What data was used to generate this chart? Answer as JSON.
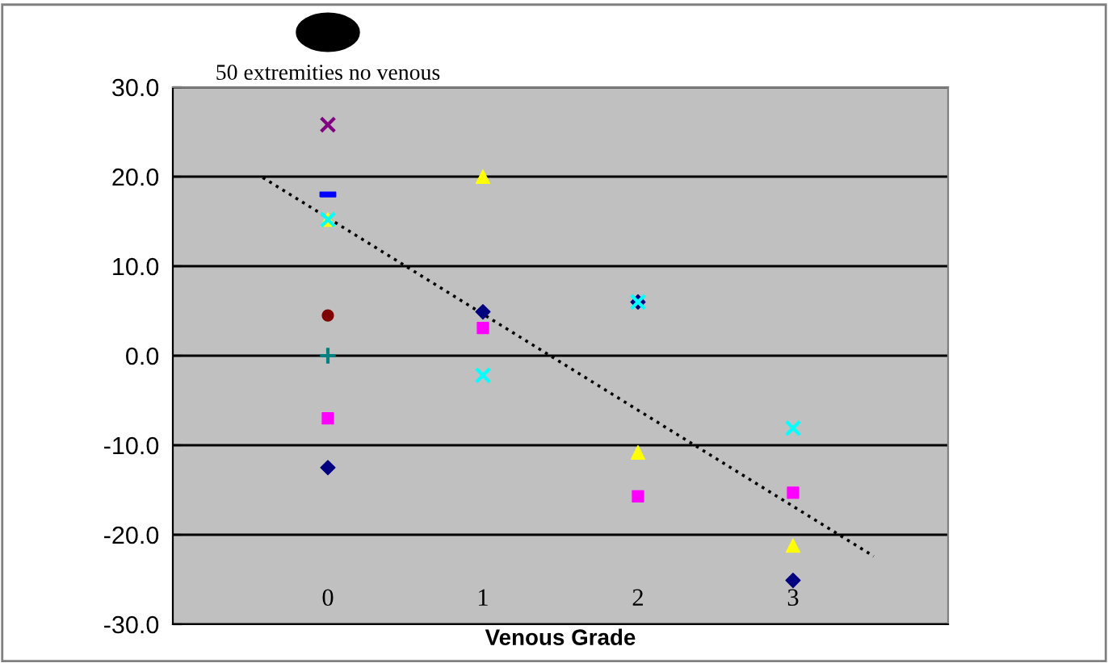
{
  "chart_data": {
    "type": "scatter",
    "xlabel": "Venous Grade",
    "annotations": [
      "50 extremities no venous"
    ],
    "xlim": [
      -1,
      4
    ],
    "xticks": [
      0,
      1,
      2,
      3
    ],
    "ylim": [
      -30,
      30
    ],
    "yticks": [
      {
        "value": -30,
        "label": "-30.0"
      },
      {
        "value": -20,
        "label": "-20.0"
      },
      {
        "value": -10,
        "label": "-10.0"
      },
      {
        "value": 0,
        "label": "0.0"
      },
      {
        "value": 10,
        "label": "10.0"
      },
      {
        "value": 20,
        "label": "20.0"
      },
      {
        "value": 30,
        "label": "30.0"
      }
    ],
    "grid": "y",
    "legend": false,
    "series": [
      {
        "type": "line",
        "x": [
          -0.42,
          3.52
        ],
        "values": [
          19.9,
          -22.4
        ],
        "color": "#000000",
        "marker": "none",
        "line_style": "dotted"
      },
      {
        "x": [
          0,
          1,
          2,
          3
        ],
        "values": [
          -12.5,
          4.9,
          6.0,
          -25.1
        ],
        "color": "#000080",
        "marker": "diamond"
      },
      {
        "x": [
          0,
          1,
          2,
          3
        ],
        "values": [
          -7.0,
          3.1,
          -15.7,
          -15.3
        ],
        "color": "#ff00ff",
        "marker": "square"
      },
      {
        "x": [
          0,
          1,
          2,
          3
        ],
        "values": [
          15.2,
          20.0,
          -10.8,
          -21.2
        ],
        "color": "#ffff00",
        "marker": "triangle"
      },
      {
        "x": [
          0,
          1,
          2,
          3
        ],
        "values": [
          15.2,
          -2.2,
          6.0,
          -8.1
        ],
        "color": "#00ffff",
        "marker": "cross"
      },
      {
        "x": [
          0
        ],
        "values": [
          25.8
        ],
        "color": "#800080",
        "marker": "cross"
      },
      {
        "x": [
          0
        ],
        "values": [
          4.5
        ],
        "color": "#800000",
        "marker": "circle"
      },
      {
        "x": [
          0
        ],
        "values": [
          0.0
        ],
        "color": "#008080",
        "marker": "plus"
      },
      {
        "x": [
          0
        ],
        "values": [
          18.0
        ],
        "color": "#0000ff"
      }
    ]
  }
}
